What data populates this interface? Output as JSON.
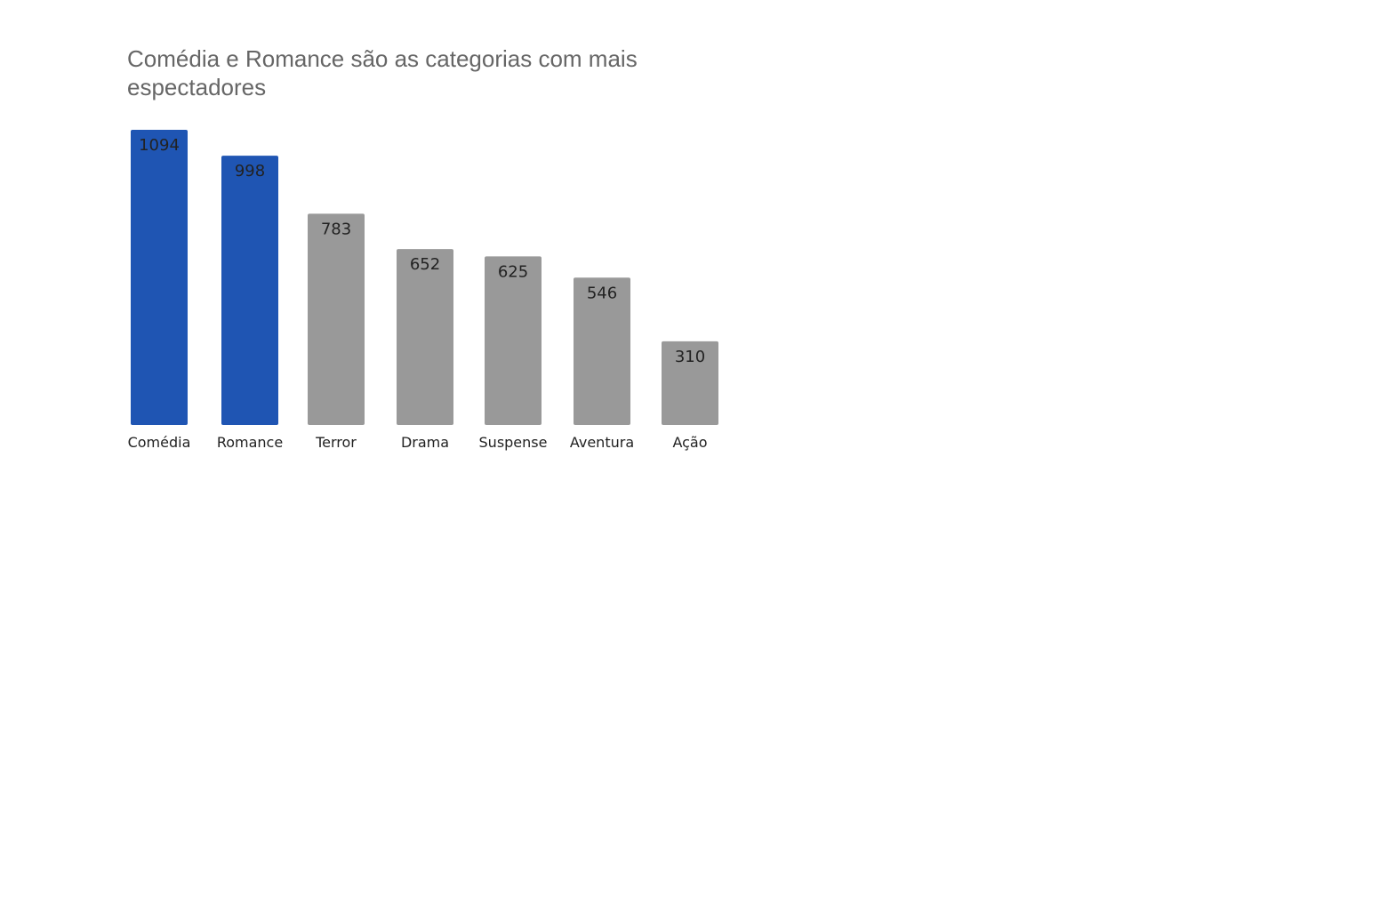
{
  "chart_data": {
    "type": "bar",
    "title": "Comédia e Romance são as categorias com mais espectadores",
    "categories": [
      "Comédia",
      "Romance",
      "Terror",
      "Drama",
      "Suspense",
      "Aventura",
      "Ação"
    ],
    "values": [
      1094,
      998,
      783,
      652,
      625,
      546,
      310
    ],
    "highlighted": [
      "Comédia",
      "Romance"
    ],
    "ylim": [
      0,
      1094
    ],
    "grid": false,
    "data_labels": "inside-top",
    "colors": {
      "highlight": "#1F55B3",
      "default": "#999999",
      "title": "#666666",
      "text": "#222222"
    }
  }
}
